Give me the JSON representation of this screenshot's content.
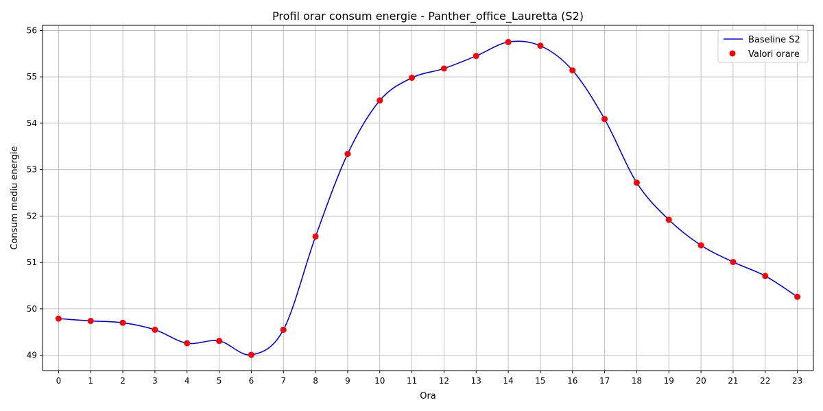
{
  "chart_data": {
    "type": "line",
    "title": "Profil orar consum energie - Panther_office_Lauretta (S2)",
    "xlabel": "Ora",
    "ylabel": "Consum mediu energie",
    "x": [
      0,
      1,
      2,
      3,
      4,
      5,
      6,
      7,
      8,
      9,
      10,
      11,
      12,
      13,
      14,
      15,
      16,
      17,
      18,
      19,
      20,
      21,
      22,
      23
    ],
    "xlim": [
      -0.5,
      23.5
    ],
    "ylim": [
      48.67,
      56.11
    ],
    "yticks": [
      49,
      50,
      51,
      52,
      53,
      54,
      55,
      56
    ],
    "grid": true,
    "legend_position": "top-right",
    "series": [
      {
        "name": "Baseline S2",
        "kind": "smooth-line",
        "color": "#0000ff",
        "values": [
          49.79,
          49.74,
          49.7,
          49.55,
          49.26,
          49.31,
          49.01,
          49.55,
          51.56,
          53.34,
          54.49,
          54.98,
          55.18,
          55.45,
          55.75,
          55.67,
          55.14,
          54.09,
          52.72,
          51.92,
          51.37,
          51.01,
          50.71,
          50.26
        ]
      },
      {
        "name": "Valori orare",
        "kind": "scatter",
        "color": "#ff0000",
        "values": [
          49.79,
          49.74,
          49.7,
          49.55,
          49.26,
          49.31,
          49.01,
          49.55,
          51.56,
          53.34,
          54.49,
          54.98,
          55.18,
          55.45,
          55.75,
          55.67,
          55.14,
          54.09,
          52.72,
          51.92,
          51.37,
          51.01,
          50.71,
          50.26
        ]
      }
    ]
  }
}
